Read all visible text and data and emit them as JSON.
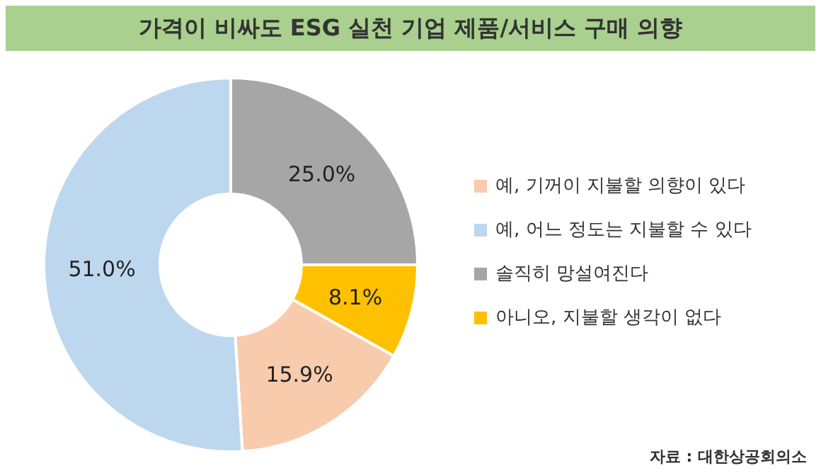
{
  "chart_data": {
    "type": "donut",
    "title": "가격이 비싸도 ESG 실천 기업 제품/서비스 구매 의향",
    "categories": [
      "예, 기꺼이 지불할 의향이 있다",
      "예, 어느 정도는 지불할 수 있다",
      "솔직히 망설여진다",
      "아니오, 지불할 생각이 없다"
    ],
    "values": [
      15.9,
      51.0,
      25.0,
      8.1
    ],
    "colors": [
      "#f8cbad",
      "#bdd7ee",
      "#a6a6a6",
      "#ffc000"
    ],
    "value_labels": [
      "15.9%",
      "51.0%",
      "25.0%",
      "8.1%"
    ],
    "legend": "right",
    "annotations": [
      "자료 : 대한상공회의소"
    ]
  }
}
